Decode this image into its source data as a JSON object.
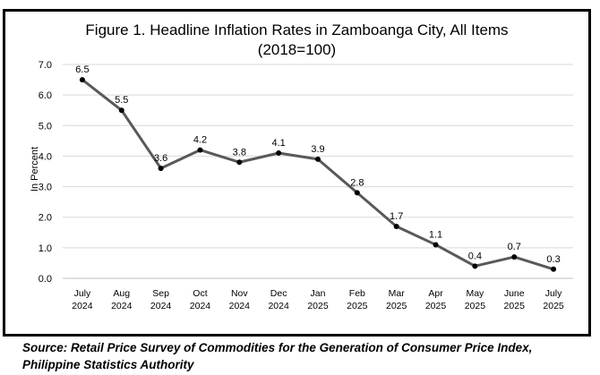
{
  "chart_data": {
    "type": "line",
    "title": "Figure 1. Headline Inflation Rates in Zamboanga City, All Items",
    "subtitle": "(2018=100)",
    "ylabel": "In Percent",
    "xlabel": "",
    "ylim": [
      0,
      7
    ],
    "yticks": [
      "0.0",
      "1.0",
      "2.0",
      "3.0",
      "4.0",
      "5.0",
      "6.0",
      "7.0"
    ],
    "grid": true,
    "categories": [
      [
        "July",
        "2024"
      ],
      [
        "Aug",
        "2024"
      ],
      [
        "Sep",
        "2024"
      ],
      [
        "Oct",
        "2024"
      ],
      [
        "Nov",
        "2024"
      ],
      [
        "Dec",
        "2024"
      ],
      [
        "Jan",
        "2025"
      ],
      [
        "Feb",
        "2025"
      ],
      [
        "Mar",
        "2025"
      ],
      [
        "Apr",
        "2025"
      ],
      [
        "May",
        "2025"
      ],
      [
        "June",
        "2025"
      ],
      [
        "July",
        "2025"
      ]
    ],
    "values": [
      6.5,
      5.5,
      3.6,
      4.2,
      3.8,
      4.1,
      3.9,
      2.8,
      1.7,
      1.1,
      0.4,
      0.7,
      0.3
    ],
    "labels": [
      "6.5",
      "5.5",
      "3.6",
      "4.2",
      "3.8",
      "4.1",
      "3.9",
      "2.8",
      "1.7",
      "1.1",
      "0.4",
      "0.7",
      "0.3"
    ],
    "line_color": "#595959",
    "marker_color": "#000000"
  },
  "source": "Source: Retail Price Survey of Commodities for the Generation of Consumer Price Index, Philippine Statistics Authority"
}
